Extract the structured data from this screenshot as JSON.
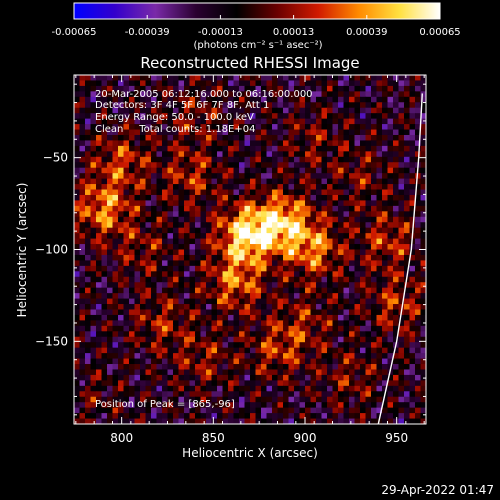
{
  "chart_data": {
    "type": "heatmap",
    "title": "Reconstructed RHESSI Image",
    "xlabel": "Heliocentric X (arcsec)",
    "ylabel": "Heliocentric Y (arcsec)",
    "xlim": [
      774,
      966
    ],
    "ylim": [
      -195,
      -5
    ],
    "x_ticks": [
      {
        "value": 800,
        "label": "800"
      },
      {
        "value": 850,
        "label": "850"
      },
      {
        "value": 900,
        "label": "900"
      },
      {
        "value": 950,
        "label": "950"
      }
    ],
    "y_ticks": [
      {
        "value": -50,
        "label": "−50"
      },
      {
        "value": -100,
        "label": "−100"
      },
      {
        "value": -150,
        "label": "−150"
      }
    ],
    "annotations": [
      "20-Mar-2005 06:12:16.000 to 06:16:00.000",
      "Detectors: 3F 4F 5F 6F 7F 8F, Att 1",
      "Energy Range: 50.0 - 100.0 keV",
      "Clean     Total counts: 1.18E+04"
    ],
    "peak_label": "Position of Peak = [865,-96]",
    "peak": {
      "x": 865,
      "y": -96
    },
    "colorbar": {
      "min": -0.00065,
      "max": 0.00065,
      "tick_labels": [
        "-0.00065",
        "-0.00039",
        "-0.00013",
        "0.00013",
        "0.00039",
        "0.00065"
      ],
      "unit_label": "(photons cm⁻² s⁻¹ asec⁻²)",
      "colors": [
        "#0000ff",
        "#3300cc",
        "#7a2aa8",
        "#2a0030",
        "#000000",
        "#6a0000",
        "#d01a00",
        "#ff8a00",
        "#ffe040",
        "#ffffff"
      ]
    },
    "sources": [
      {
        "x": 868,
        "y": -92,
        "value": 0.00065
      },
      {
        "x": 888,
        "y": -85,
        "value": 0.00055
      },
      {
        "x": 905,
        "y": -100,
        "value": 0.00042
      },
      {
        "x": 862,
        "y": -118,
        "value": 0.0004
      },
      {
        "x": 790,
        "y": -78,
        "value": 0.00045
      },
      {
        "x": 800,
        "y": -52,
        "value": 0.00032
      },
      {
        "x": 838,
        "y": -60,
        "value": 0.00028
      },
      {
        "x": 945,
        "y": -95,
        "value": 0.0003
      },
      {
        "x": 950,
        "y": -130,
        "value": 0.00028
      },
      {
        "x": 822,
        "y": -140,
        "value": 0.00025
      },
      {
        "x": 885,
        "y": -155,
        "value": 0.00028
      },
      {
        "x": 900,
        "y": -140,
        "value": 0.00022
      },
      {
        "x": 845,
        "y": -160,
        "value": 0.00022
      },
      {
        "x": 925,
        "y": -170,
        "value": 0.0002
      },
      {
        "x": 812,
        "y": -100,
        "value": 0.0002
      },
      {
        "x": 840,
        "y": -28,
        "value": 0.0002
      },
      {
        "x": 905,
        "y": -40,
        "value": 0.00018
      },
      {
        "x": 930,
        "y": -60,
        "value": 0.00018
      },
      {
        "x": 785,
        "y": -180,
        "value": 0.00012
      }
    ],
    "limb": {
      "type": "line",
      "description": "solar limb",
      "points": [
        {
          "x": 940,
          "y": -195
        },
        {
          "x": 950,
          "y": -150
        },
        {
          "x": 958,
          "y": -100
        },
        {
          "x": 962,
          "y": -50
        },
        {
          "x": 964,
          "y": -15
        }
      ]
    }
  },
  "footer": {
    "timestamp": "29-Apr-2022 01:47"
  }
}
